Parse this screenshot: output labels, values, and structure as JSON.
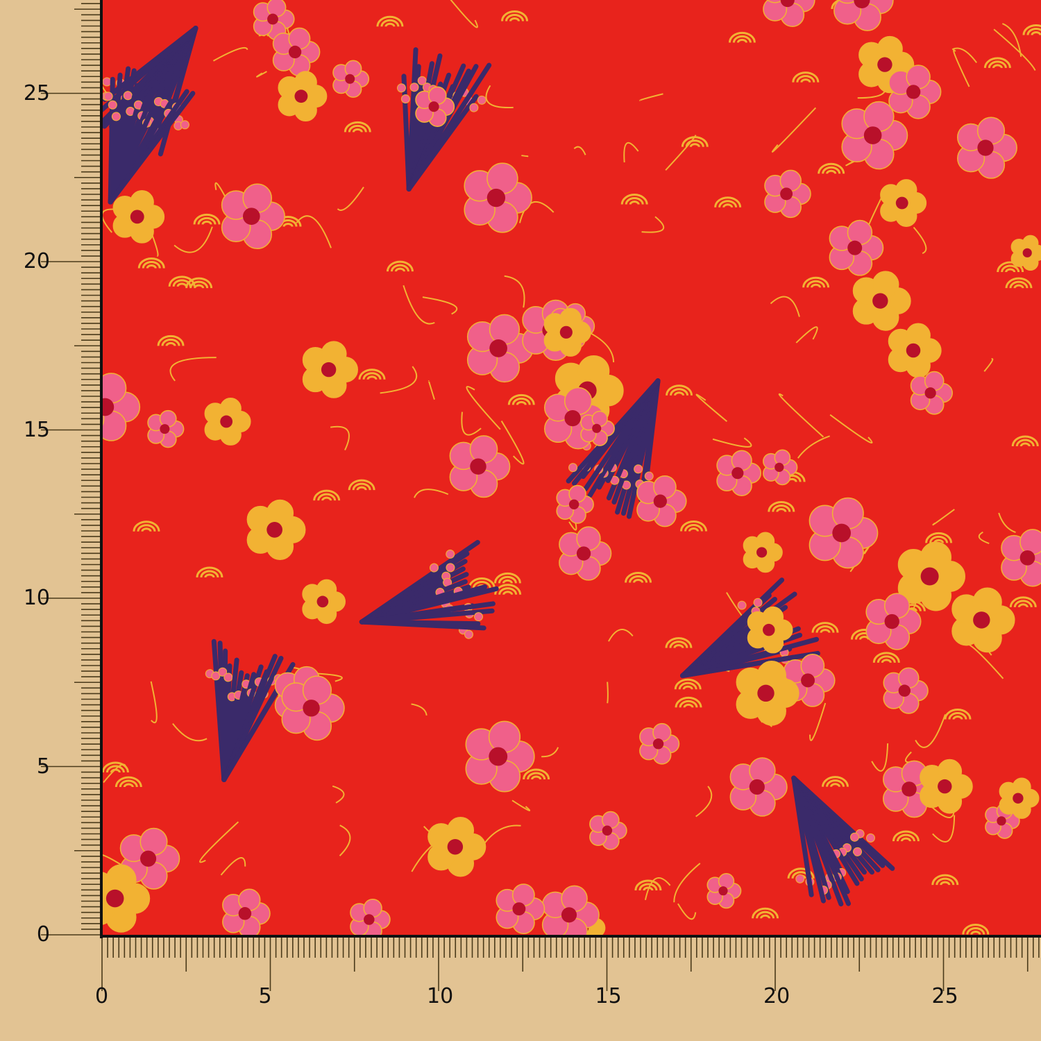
{
  "colors": {
    "background": "#e2c393",
    "fabric_base": "#e8231c",
    "gold": "#f2b233",
    "pink": "#f0608a",
    "navy": "#3a2a6a",
    "crimson": "#b8102a"
  },
  "ruler_left": {
    "labels": [
      "0",
      "5",
      "10",
      "15",
      "20",
      "25"
    ]
  },
  "ruler_bottom": {
    "labels": [
      "0",
      "5",
      "10",
      "15",
      "20",
      "25"
    ]
  }
}
